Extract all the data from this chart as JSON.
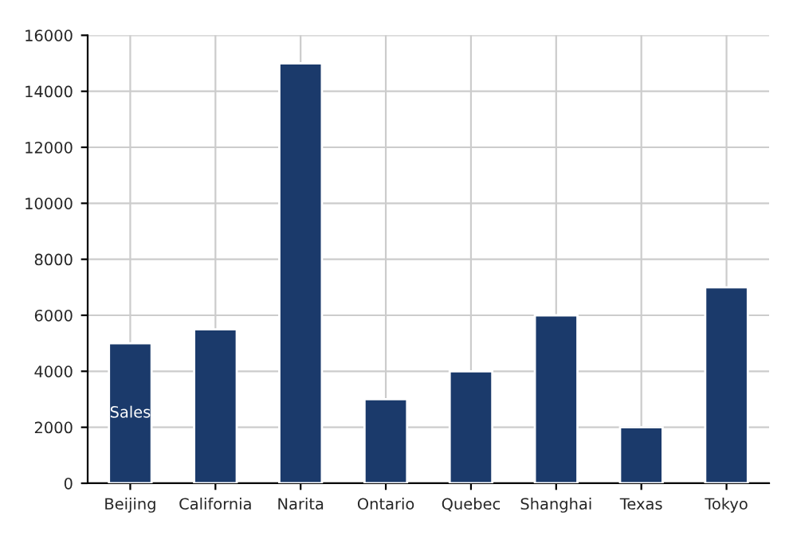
{
  "chart_data": {
    "type": "bar",
    "categories": [
      "Beijing",
      "California",
      "Narita",
      "Ontario",
      "Quebec",
      "Shanghai",
      "Texas",
      "Tokyo"
    ],
    "series": [
      {
        "name": "Sales",
        "color": "#1b3a6b",
        "values": [
          5000,
          5500,
          15000,
          3000,
          4000,
          6000,
          2000,
          7000
        ]
      }
    ],
    "ylim": [
      0,
      16000
    ],
    "yticks": [
      0,
      2000,
      4000,
      6000,
      8000,
      10000,
      12000,
      14000,
      16000
    ],
    "grid": true
  }
}
